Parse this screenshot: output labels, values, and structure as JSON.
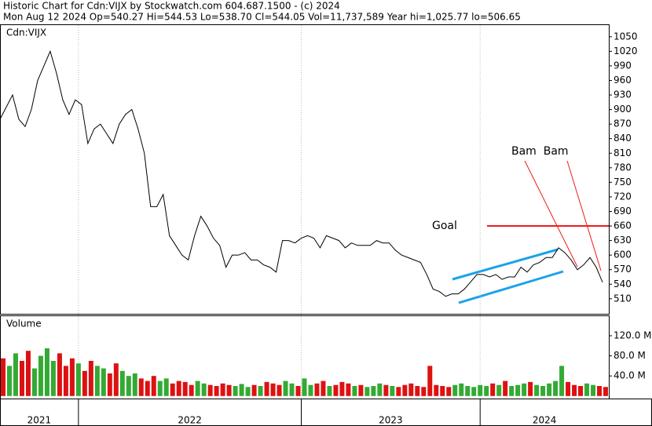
{
  "header": {
    "line1": "Historic Chart for Cdn:VIJX by Stockwatch.com 604.687.1500 - (c) 2024",
    "line2": "Mon Aug 12 2024   Op=540.27   Hi=544.53   Lo=538.70   Cl=544.05   Vol=11,737,589   Year hi=1,025.77   lo=506.65"
  },
  "chart_data": [
    {
      "type": "line",
      "title": "Cdn:VIJX",
      "ylim": [
        479,
        1074
      ],
      "yticks": [
        510,
        540,
        570,
        600,
        630,
        660,
        690,
        720,
        750,
        780,
        810,
        840,
        870,
        900,
        930,
        960,
        990,
        1020,
        1050
      ],
      "xlim": [
        0,
        97
      ],
      "xticks": [
        {
          "value": 0,
          "label": "2021"
        },
        {
          "value": 12.5,
          "label": "2022"
        },
        {
          "value": 48,
          "label": "2023"
        },
        {
          "value": 76.5,
          "label": "2024"
        }
      ],
      "series": [
        {
          "color": "#000000",
          "values": [
            880,
            905,
            930,
            880,
            865,
            900,
            960,
            990,
            1020,
            975,
            920,
            890,
            920,
            910,
            830,
            860,
            870,
            850,
            830,
            870,
            890,
            900,
            860,
            810,
            700,
            700,
            725,
            640,
            620,
            600,
            590,
            640,
            680,
            660,
            635,
            620,
            575,
            600,
            600,
            605,
            590,
            590,
            580,
            575,
            565,
            630,
            630,
            625,
            635,
            640,
            635,
            615,
            640,
            635,
            630,
            615,
            625,
            620,
            620,
            620,
            630,
            625,
            625,
            610,
            600,
            595,
            590,
            585,
            560,
            530,
            525,
            515,
            520,
            520,
            530,
            545,
            560,
            560,
            555,
            560,
            550,
            555,
            555,
            575,
            565,
            580,
            585,
            595,
            595,
            615,
            605,
            590,
            570,
            580,
            595,
            575,
            544.05
          ]
        }
      ],
      "annotations": [
        {
          "text": "Goal",
          "value": 660,
          "color": "#ee1c1c"
        },
        {
          "text": "Bam  Bam",
          "color": "#ee1c1c"
        }
      ]
    },
    {
      "type": "bar",
      "title": "Volume",
      "ylim": [
        -5,
        159
      ],
      "yticks": [
        {
          "value": 40,
          "label": "40.0 M"
        },
        {
          "value": 80,
          "label": "80.0 M"
        },
        {
          "value": 120,
          "label": "120.0 M"
        }
      ],
      "up_color": "#33aa33",
      "down_color": "#dd1111",
      "values": [
        75,
        60,
        85,
        70,
        90,
        55,
        80,
        95,
        70,
        85,
        60,
        75,
        65,
        50,
        70,
        60,
        55,
        45,
        65,
        50,
        40,
        45,
        35,
        30,
        40,
        30,
        35,
        25,
        30,
        28,
        22,
        30,
        25,
        22,
        20,
        25,
        22,
        20,
        24,
        18,
        22,
        20,
        28,
        25,
        22,
        30,
        25,
        20,
        35,
        22,
        25,
        30,
        20,
        22,
        28,
        25,
        20,
        22,
        18,
        20,
        25,
        22,
        20,
        18,
        22,
        25,
        20,
        18,
        60,
        22,
        20,
        18,
        22,
        25,
        20,
        18,
        22,
        20,
        25,
        22,
        30,
        20,
        22,
        25,
        28,
        22,
        20,
        25,
        30,
        60,
        28,
        22,
        20,
        25,
        22,
        20,
        18
      ]
    }
  ]
}
